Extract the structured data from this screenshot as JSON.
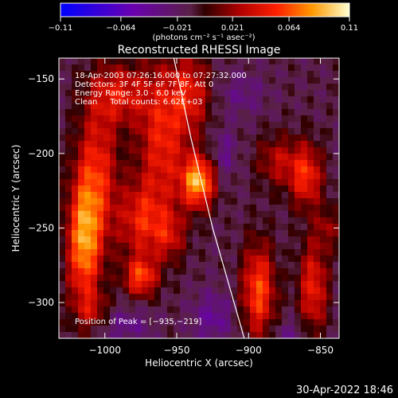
{
  "chart_data": {
    "type": "heatmap",
    "title": "Reconstructed RHESSI Image",
    "xlabel": "Heliocentric X (arcsec)",
    "ylabel": "Heliocentric Y (arcsec)",
    "xlim": [
      -1032,
      -837
    ],
    "ylim": [
      -324,
      -136
    ],
    "x_ticks": [
      -1000,
      -950,
      -900,
      -850
    ],
    "x_tick_labels": [
      "−1000",
      "−950",
      "−900",
      "−850"
    ],
    "y_ticks": [
      -150,
      -200,
      -250,
      -300
    ],
    "y_tick_labels": [
      "−150",
      "−200",
      "−250",
      "−300"
    ],
    "colorbar": {
      "min": -0.11,
      "max": 0.11,
      "tick_values": [
        -0.11,
        -0.064,
        -0.021,
        0.021,
        0.064,
        0.11
      ],
      "tick_labels": [
        "−0.11",
        "−0.064",
        "−0.021",
        "0.021",
        "0.064",
        "0.11"
      ],
      "units_label": "(photons cm⁻² s⁻¹ asec⁻²)"
    },
    "info_lines": [
      "18-Apr-2003 07:26:16.000 to 07:27:32.000",
      "Detectors: 3F 4F 5F 6F 7F 8F, Att 0",
      "Energy Range: 3.0 - 6.0 keV",
      "Clean     Total counts: 6.62E+03"
    ],
    "peak_label": "Position of Peak = [−935,−219]",
    "peak": {
      "x": -935,
      "y": -219,
      "value": 0.11
    },
    "sources": [
      {
        "x": -935,
        "y": -219,
        "sx": 8,
        "sy": 12,
        "amp": 0.1
      },
      {
        "x": -960,
        "y": -190,
        "sx": 12,
        "sy": 35,
        "amp": 0.06
      },
      {
        "x": -1015,
        "y": -260,
        "sx": 8,
        "sy": 30,
        "amp": 0.085
      },
      {
        "x": -1005,
        "y": -215,
        "sx": 10,
        "sy": 35,
        "amp": 0.06
      },
      {
        "x": -990,
        "y": -160,
        "sx": 14,
        "sy": 14,
        "amp": 0.05
      },
      {
        "x": -975,
        "y": -283,
        "sx": 8,
        "sy": 9,
        "amp": 0.07
      },
      {
        "x": -975,
        "y": -245,
        "sx": 11,
        "sy": 18,
        "amp": 0.055
      },
      {
        "x": -940,
        "y": -160,
        "sx": 10,
        "sy": 18,
        "amp": 0.05
      },
      {
        "x": -955,
        "y": -255,
        "sx": 8,
        "sy": 12,
        "amp": 0.04
      },
      {
        "x": -1008,
        "y": -305,
        "sx": 8,
        "sy": 8,
        "amp": 0.03
      },
      {
        "x": -893,
        "y": -292,
        "sx": 8,
        "sy": 22,
        "amp": 0.075
      },
      {
        "x": -860,
        "y": -215,
        "sx": 8,
        "sy": 15,
        "amp": 0.065
      },
      {
        "x": -880,
        "y": -205,
        "sx": 10,
        "sy": 12,
        "amp": 0.04
      },
      {
        "x": -855,
        "y": -290,
        "sx": 7,
        "sy": 22,
        "amp": 0.06
      },
      {
        "x": -845,
        "y": -250,
        "sx": 6,
        "sy": 10,
        "amp": 0.03
      },
      {
        "x": -917,
        "y": -200,
        "sx": 6,
        "sy": 12,
        "amp": -0.025
      },
      {
        "x": -905,
        "y": -160,
        "sx": 12,
        "sy": 10,
        "amp": -0.02
      },
      {
        "x": -925,
        "y": -310,
        "sx": 10,
        "sy": 12,
        "amp": -0.03
      },
      {
        "x": -985,
        "y": -315,
        "sx": 12,
        "sy": 8,
        "amp": -0.025
      },
      {
        "x": -870,
        "y": -320,
        "sx": 10,
        "sy": 6,
        "amp": -0.02
      }
    ],
    "limb_points": [
      [
        -952,
        -136
      ],
      [
        -940,
        -190
      ],
      [
        -925,
        -250
      ],
      [
        -903,
        -324
      ]
    ],
    "grid": false,
    "colormap": "rhessi"
  },
  "footer_timestamp": "30-Apr-2022 18:46"
}
